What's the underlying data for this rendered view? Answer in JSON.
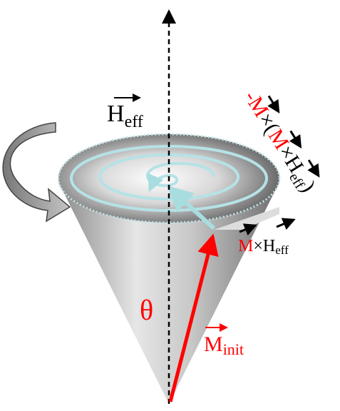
{
  "labels": {
    "field": {
      "symbol": "H",
      "subscript": "eff"
    },
    "damping": {
      "parts": [
        "-",
        "M",
        "×(",
        "M",
        "×",
        "H",
        "eff",
        ")"
      ]
    },
    "precession": {
      "parts": [
        "M",
        "×",
        "H",
        "eff"
      ]
    },
    "angle": "θ",
    "initial": {
      "symbol": "M",
      "subscript": "init"
    }
  }
}
